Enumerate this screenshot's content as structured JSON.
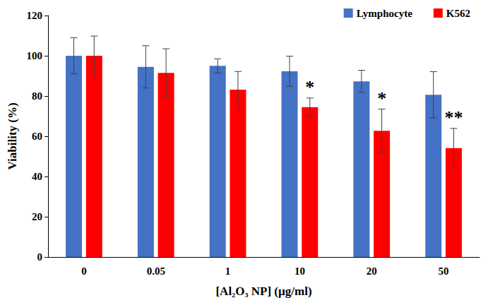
{
  "chart_data": {
    "type": "bar",
    "x_label": "[Al₂O₃ NP] (µg/ml)",
    "y_label": "Viability (%)",
    "categories": [
      "0",
      "0.05",
      "1",
      "10",
      "20",
      "50"
    ],
    "series": [
      {
        "name": "Lymphocyte",
        "color": "#4472c4",
        "values": [
          100,
          94.5,
          95,
          92.3,
          87.3,
          80.6
        ],
        "errors": [
          9,
          10.5,
          3.5,
          7.5,
          5.5,
          11.5
        ],
        "significance": [
          null,
          null,
          null,
          null,
          null,
          null
        ]
      },
      {
        "name": "K562",
        "color": "#ff0000",
        "values": [
          100,
          91.5,
          83.2,
          74.5,
          62.7,
          54.1
        ],
        "errors": [
          9.8,
          12,
          9,
          4.5,
          10.8,
          9.8
        ],
        "significance": [
          null,
          null,
          null,
          "*",
          "*",
          "**"
        ]
      }
    ],
    "ylim": [
      0,
      120
    ],
    "yticks": [
      0,
      20,
      40,
      60,
      80,
      100,
      120
    ],
    "grid": false,
    "legend": "top-right"
  }
}
